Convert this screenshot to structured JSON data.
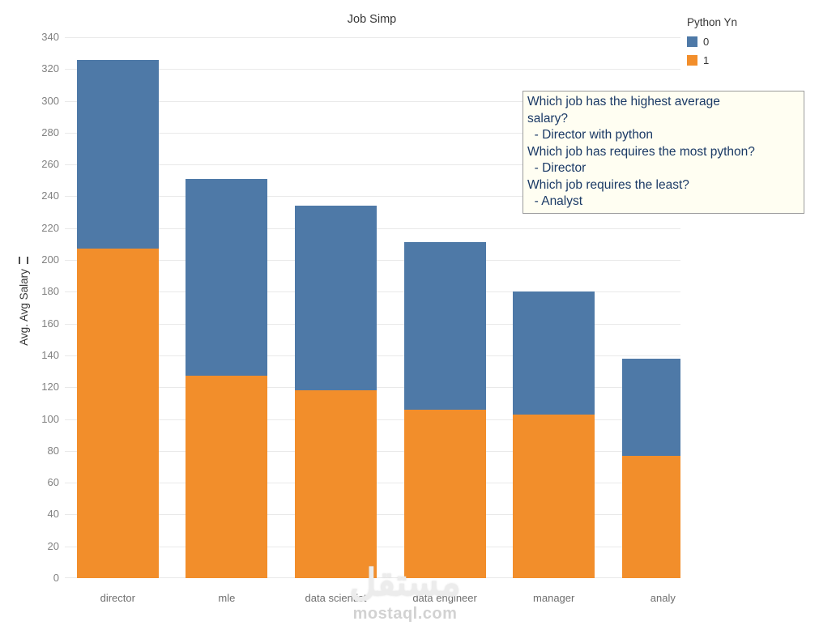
{
  "title": "Job Simp",
  "y_axis": {
    "label": "Avg. Avg Salary"
  },
  "legend": {
    "title": "Python Yn",
    "items": [
      {
        "label": "0",
        "color": "#4e79a7"
      },
      {
        "label": "1",
        "color": "#f28e2b"
      }
    ]
  },
  "annotation": {
    "lines": [
      "Which job has the highest average",
      "salary?",
      "  - Director with python",
      "Which job has requires the most python?",
      "  - Director",
      "Which job requires the least?",
      "  - Analyst"
    ]
  },
  "watermark": {
    "name": "مستقل",
    "site": "mostaql.com"
  },
  "chart_data": {
    "type": "bar",
    "stacked": true,
    "title": "Job Simp",
    "categories": [
      "director",
      "mle",
      "data scientist",
      "data engineer",
      "manager",
      "analy"
    ],
    "series": [
      {
        "name": "0",
        "color": "#4e79a7",
        "values": [
          119,
          124,
          116,
          105,
          77,
          61
        ]
      },
      {
        "name": "1",
        "color": "#f28e2b",
        "values": [
          207,
          127,
          118,
          106,
          103,
          77
        ]
      }
    ],
    "stack_order_bottom_to_top": [
      "1",
      "0"
    ],
    "totals": [
      326,
      251,
      234,
      211,
      180,
      138
    ],
    "ylabel": "Avg. Avg Salary",
    "ylim": [
      0,
      340
    ],
    "ytick_step": 20,
    "grid": "horizontal",
    "legend_title": "Python Yn",
    "legend_position": "top-right"
  }
}
